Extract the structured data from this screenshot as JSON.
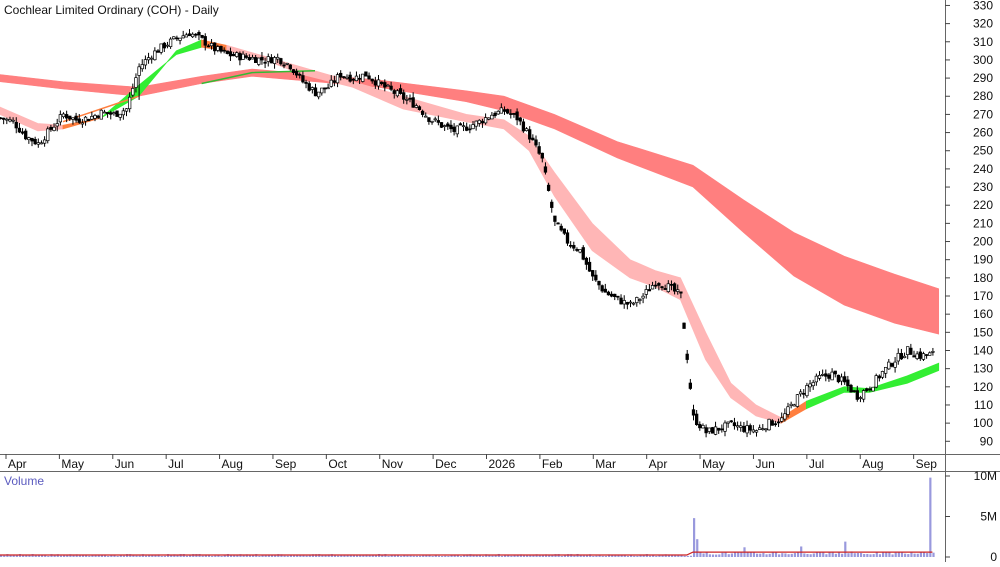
{
  "chart_data": {
    "type": "candlestick",
    "title": "Cochlear Limited Ordinary (COH) - Daily",
    "price_axis": {
      "ticks": [
        90,
        100,
        110,
        120,
        130,
        140,
        150,
        160,
        170,
        180,
        190,
        200,
        210,
        220,
        230,
        240,
        250,
        260,
        270,
        280,
        290,
        300,
        310,
        320,
        330
      ],
      "ylim": [
        83,
        333
      ]
    },
    "x_axis": {
      "labels": [
        "Apr",
        "May",
        "Jun",
        "Jul",
        "Aug",
        "Sep",
        "Oct",
        "Nov",
        "Dec",
        "2026",
        "Feb",
        "Mar",
        "Apr",
        "May",
        "Jun",
        "Jul",
        "Aug",
        "Sep"
      ]
    },
    "price_path": [
      [
        0,
        268
      ],
      [
        4,
        266
      ],
      [
        8,
        258
      ],
      [
        12,
        254
      ],
      [
        16,
        262
      ],
      [
        20,
        270
      ],
      [
        24,
        267
      ],
      [
        28,
        268
      ],
      [
        32,
        271
      ],
      [
        36,
        270
      ],
      [
        40,
        273
      ],
      [
        44,
        296
      ],
      [
        48,
        303
      ],
      [
        52,
        308
      ],
      [
        56,
        312
      ],
      [
        60,
        315
      ],
      [
        64,
        311
      ],
      [
        68,
        306
      ],
      [
        72,
        303
      ],
      [
        76,
        302
      ],
      [
        80,
        301
      ],
      [
        84,
        300
      ],
      [
        88,
        301
      ],
      [
        92,
        297
      ],
      [
        96,
        288
      ],
      [
        100,
        282
      ],
      [
        104,
        285
      ],
      [
        108,
        292
      ],
      [
        112,
        290
      ],
      [
        116,
        292
      ],
      [
        120,
        287
      ],
      [
        124,
        283
      ],
      [
        128,
        279
      ],
      [
        132,
        275
      ],
      [
        136,
        268
      ],
      [
        140,
        264
      ],
      [
        144,
        261
      ],
      [
        148,
        263
      ],
      [
        152,
        266
      ],
      [
        156,
        270
      ],
      [
        160,
        272
      ],
      [
        164,
        268
      ],
      [
        168,
        258
      ],
      [
        172,
        245
      ],
      [
        176,
        210
      ],
      [
        180,
        200
      ],
      [
        184,
        195
      ],
      [
        188,
        180
      ],
      [
        192,
        172
      ],
      [
        196,
        168
      ],
      [
        200,
        165
      ],
      [
        204,
        170
      ],
      [
        208,
        178
      ],
      [
        212,
        175
      ],
      [
        216,
        170
      ],
      [
        220,
        103
      ],
      [
        224,
        95
      ],
      [
        228,
        97
      ],
      [
        232,
        99
      ],
      [
        236,
        97
      ],
      [
        240,
        96
      ],
      [
        244,
        100
      ],
      [
        248,
        102
      ],
      [
        252,
        112
      ],
      [
        256,
        120
      ],
      [
        260,
        125
      ],
      [
        264,
        127
      ],
      [
        268,
        122
      ],
      [
        272,
        115
      ],
      [
        276,
        120
      ],
      [
        280,
        128
      ],
      [
        284,
        135
      ],
      [
        288,
        140
      ],
      [
        292,
        137
      ],
      [
        296,
        138
      ]
    ],
    "overlays": {
      "long_term_ribbon": {
        "upper": [
          [
            0,
            292
          ],
          [
            20,
            288
          ],
          [
            44,
            285
          ],
          [
            64,
            291
          ],
          [
            80,
            295
          ],
          [
            100,
            292
          ],
          [
            120,
            289
          ],
          [
            148,
            283
          ],
          [
            160,
            280
          ],
          [
            176,
            270
          ],
          [
            196,
            255
          ],
          [
            220,
            242
          ],
          [
            236,
            223
          ],
          [
            252,
            205
          ],
          [
            268,
            192
          ],
          [
            284,
            182
          ],
          [
            298,
            174
          ]
        ],
        "lower": [
          [
            0,
            288
          ],
          [
            20,
            284
          ],
          [
            44,
            280
          ],
          [
            64,
            287
          ],
          [
            80,
            291
          ],
          [
            100,
            288
          ],
          [
            120,
            285
          ],
          [
            148,
            277
          ],
          [
            160,
            272
          ],
          [
            176,
            262
          ],
          [
            196,
            246
          ],
          [
            220,
            230
          ],
          [
            236,
            205
          ],
          [
            252,
            181
          ],
          [
            268,
            165
          ],
          [
            284,
            155
          ],
          [
            298,
            149
          ]
        ],
        "color": "#ff7f7f"
      },
      "short_term_ribbon": [
        {
          "color": "#ffb6b6",
          "upper": [
            [
              0,
              274
            ],
            [
              12,
              265
            ],
            [
              20,
              264
            ]
          ],
          "lower": [
            [
              0,
              270
            ],
            [
              12,
              261
            ],
            [
              20,
              262
            ]
          ]
        },
        {
          "color": "#ff7f3f",
          "upper": [
            [
              20,
              264
            ],
            [
              32,
              268
            ]
          ],
          "lower": [
            [
              20,
              262
            ],
            [
              32,
              268
            ]
          ]
        },
        {
          "color": "#33ee33",
          "upper": [
            [
              32,
              268
            ],
            [
              44,
              280
            ],
            [
              56,
              305
            ],
            [
              64,
              311
            ]
          ],
          "lower": [
            [
              32,
              268
            ],
            [
              44,
              286
            ],
            [
              56,
              303
            ],
            [
              64,
              307
            ]
          ]
        },
        {
          "color": "#ff7f3f",
          "upper": [
            [
              64,
              311
            ],
            [
              72,
              308
            ]
          ],
          "lower": [
            [
              64,
              307
            ],
            [
              72,
              305
            ]
          ]
        },
        {
          "color": "#ffb6b6",
          "upper": [
            [
              72,
              308
            ],
            [
              84,
              302
            ],
            [
              96,
              296
            ],
            [
              112,
              288
            ],
            [
              128,
              280
            ],
            [
              148,
              270
            ],
            [
              160,
              267
            ],
            [
              168,
              258
            ],
            [
              176,
              238
            ],
            [
              188,
              210
            ],
            [
              200,
              190
            ],
            [
              208,
              184
            ],
            [
              216,
              180
            ],
            [
              224,
              150
            ],
            [
              232,
              122
            ],
            [
              240,
              110
            ],
            [
              248,
              103
            ]
          ],
          "lower": [
            [
              72,
              305
            ],
            [
              84,
              300
            ],
            [
              96,
              292
            ],
            [
              112,
              285
            ],
            [
              128,
              273
            ],
            [
              148,
              266
            ],
            [
              160,
              262
            ],
            [
              168,
              250
            ],
            [
              176,
              225
            ],
            [
              188,
              195
            ],
            [
              200,
              180
            ],
            [
              208,
              175
            ],
            [
              216,
              168
            ],
            [
              224,
              135
            ],
            [
              232,
              114
            ],
            [
              240,
              104
            ],
            [
              248,
              100
            ]
          ]
        },
        {
          "color": "#ff7f3f",
          "upper": [
            [
              248,
              103
            ],
            [
              256,
              112
            ]
          ],
          "lower": [
            [
              248,
              100
            ],
            [
              256,
              108
            ]
          ]
        },
        {
          "color": "#33ee33",
          "upper": [
            [
              256,
              112
            ],
            [
              268,
              120
            ],
            [
              276,
              119
            ],
            [
              288,
              126
            ],
            [
              298,
              133
            ]
          ],
          "lower": [
            [
              256,
              108
            ],
            [
              268,
              117
            ],
            [
              276,
              117
            ],
            [
              288,
              122
            ],
            [
              298,
              129
            ]
          ]
        }
      ],
      "lower_line_segments": [
        {
          "color": "#ff7f3f",
          "points": [
            [
              20,
              266
            ],
            [
              44,
              280
            ]
          ]
        },
        {
          "color": "#33bb33",
          "points": [
            [
              64,
              287
            ],
            [
              80,
              293
            ],
            [
              100,
              294
            ]
          ]
        }
      ]
    },
    "volume": {
      "label": "Volume",
      "ticks": [
        "0",
        "5M",
        "10M"
      ],
      "max": 10000000,
      "baseline": 250000,
      "spikes": [
        [
          220,
          4800000
        ],
        [
          221,
          2200000
        ],
        [
          236,
          1200000
        ],
        [
          254,
          1300000
        ],
        [
          268,
          1900000
        ],
        [
          295,
          9800000
        ]
      ]
    },
    "ylim": [
      83,
      333
    ],
    "xlim": [
      0,
      300
    ]
  }
}
